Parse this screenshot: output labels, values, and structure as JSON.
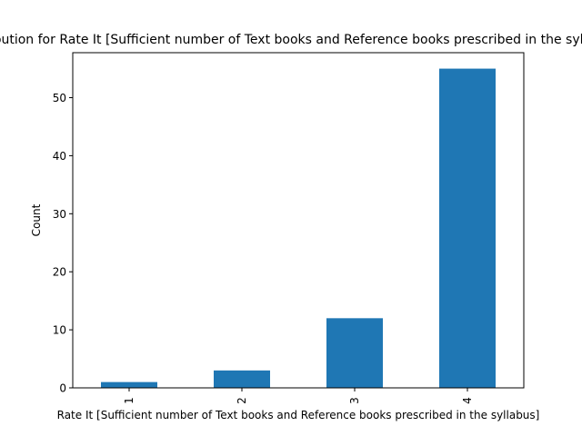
{
  "chart_data": {
    "type": "bar",
    "title": "Distribution for Rate It [Sufficient number of Text books and Reference books prescribed in the syllabus]",
    "xlabel": "Rate It [Sufficient number of Text books and Reference books prescribed in the syllabus]",
    "ylabel": "Count",
    "categories": [
      "1",
      "2",
      "3",
      "4"
    ],
    "values": [
      1,
      3,
      12,
      55
    ],
    "ylim": [
      0,
      57.75
    ],
    "yticks": [
      0,
      10,
      20,
      30,
      40,
      50
    ],
    "grid": false,
    "legend": "none",
    "bar_color": "#1f77b4"
  }
}
